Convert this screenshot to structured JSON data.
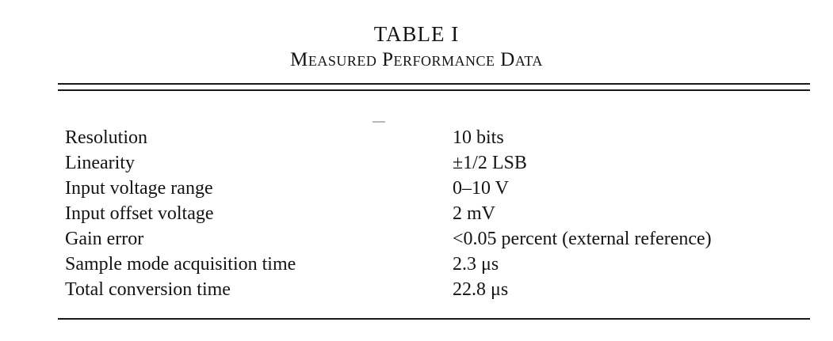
{
  "table": {
    "number": "TABLE I",
    "caption": "Measured Performance Data",
    "rows": [
      {
        "parameter": "Resolution",
        "value": "10 bits"
      },
      {
        "parameter": "Linearity",
        "value": "±1/2 LSB"
      },
      {
        "parameter": "Input voltage range",
        "value": "0–10 V"
      },
      {
        "parameter": "Input offset voltage",
        "value": "2 mV"
      },
      {
        "parameter": "Gain error",
        "value": "<0.05 percent (external reference)"
      },
      {
        "parameter": "Sample mode acquisition time",
        "value": "2.3 μs"
      },
      {
        "parameter": "Total conversion time",
        "value": "22.8 μs"
      }
    ]
  }
}
